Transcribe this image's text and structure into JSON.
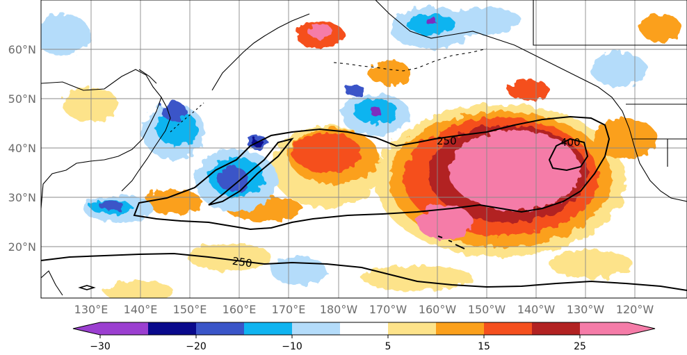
{
  "map": {
    "lat_labels": [
      "60°N",
      "50°N",
      "40°N",
      "30°N",
      "20°N"
    ],
    "lon_labels": [
      "130°E",
      "140°E",
      "150°E",
      "160°E",
      "170°E",
      "180°W",
      "170°W",
      "160°W",
      "150°W",
      "140°W",
      "130°W",
      "120°W"
    ],
    "contour_labels": [
      "250",
      "400",
      "250"
    ],
    "colors": {
      "strong_neg": "#7b2fbf",
      "neg_navy": "#0a0a8c",
      "neg_blue": "#3a55c8",
      "neg_cyan": "#10b4f0",
      "neg_light": "#b4dcfa",
      "pos_yellow": "#fde38a",
      "pos_orange": "#fba01c",
      "pos_red": "#f5501e",
      "pos_dark": "#b22222",
      "pos_pink": "#f57ca8",
      "land_line": "#000000"
    }
  },
  "colorbar": {
    "tick_labels": [
      "−30",
      "−20",
      "−10",
      "5",
      "15",
      "25"
    ],
    "colors": [
      "#9b3fd0",
      "#0a0a8c",
      "#3a55c8",
      "#10b4f0",
      "#b4dcfa",
      "#ffffff",
      "#fde38a",
      "#fba01c",
      "#f5501e",
      "#b22222",
      "#f57ca8"
    ]
  }
}
